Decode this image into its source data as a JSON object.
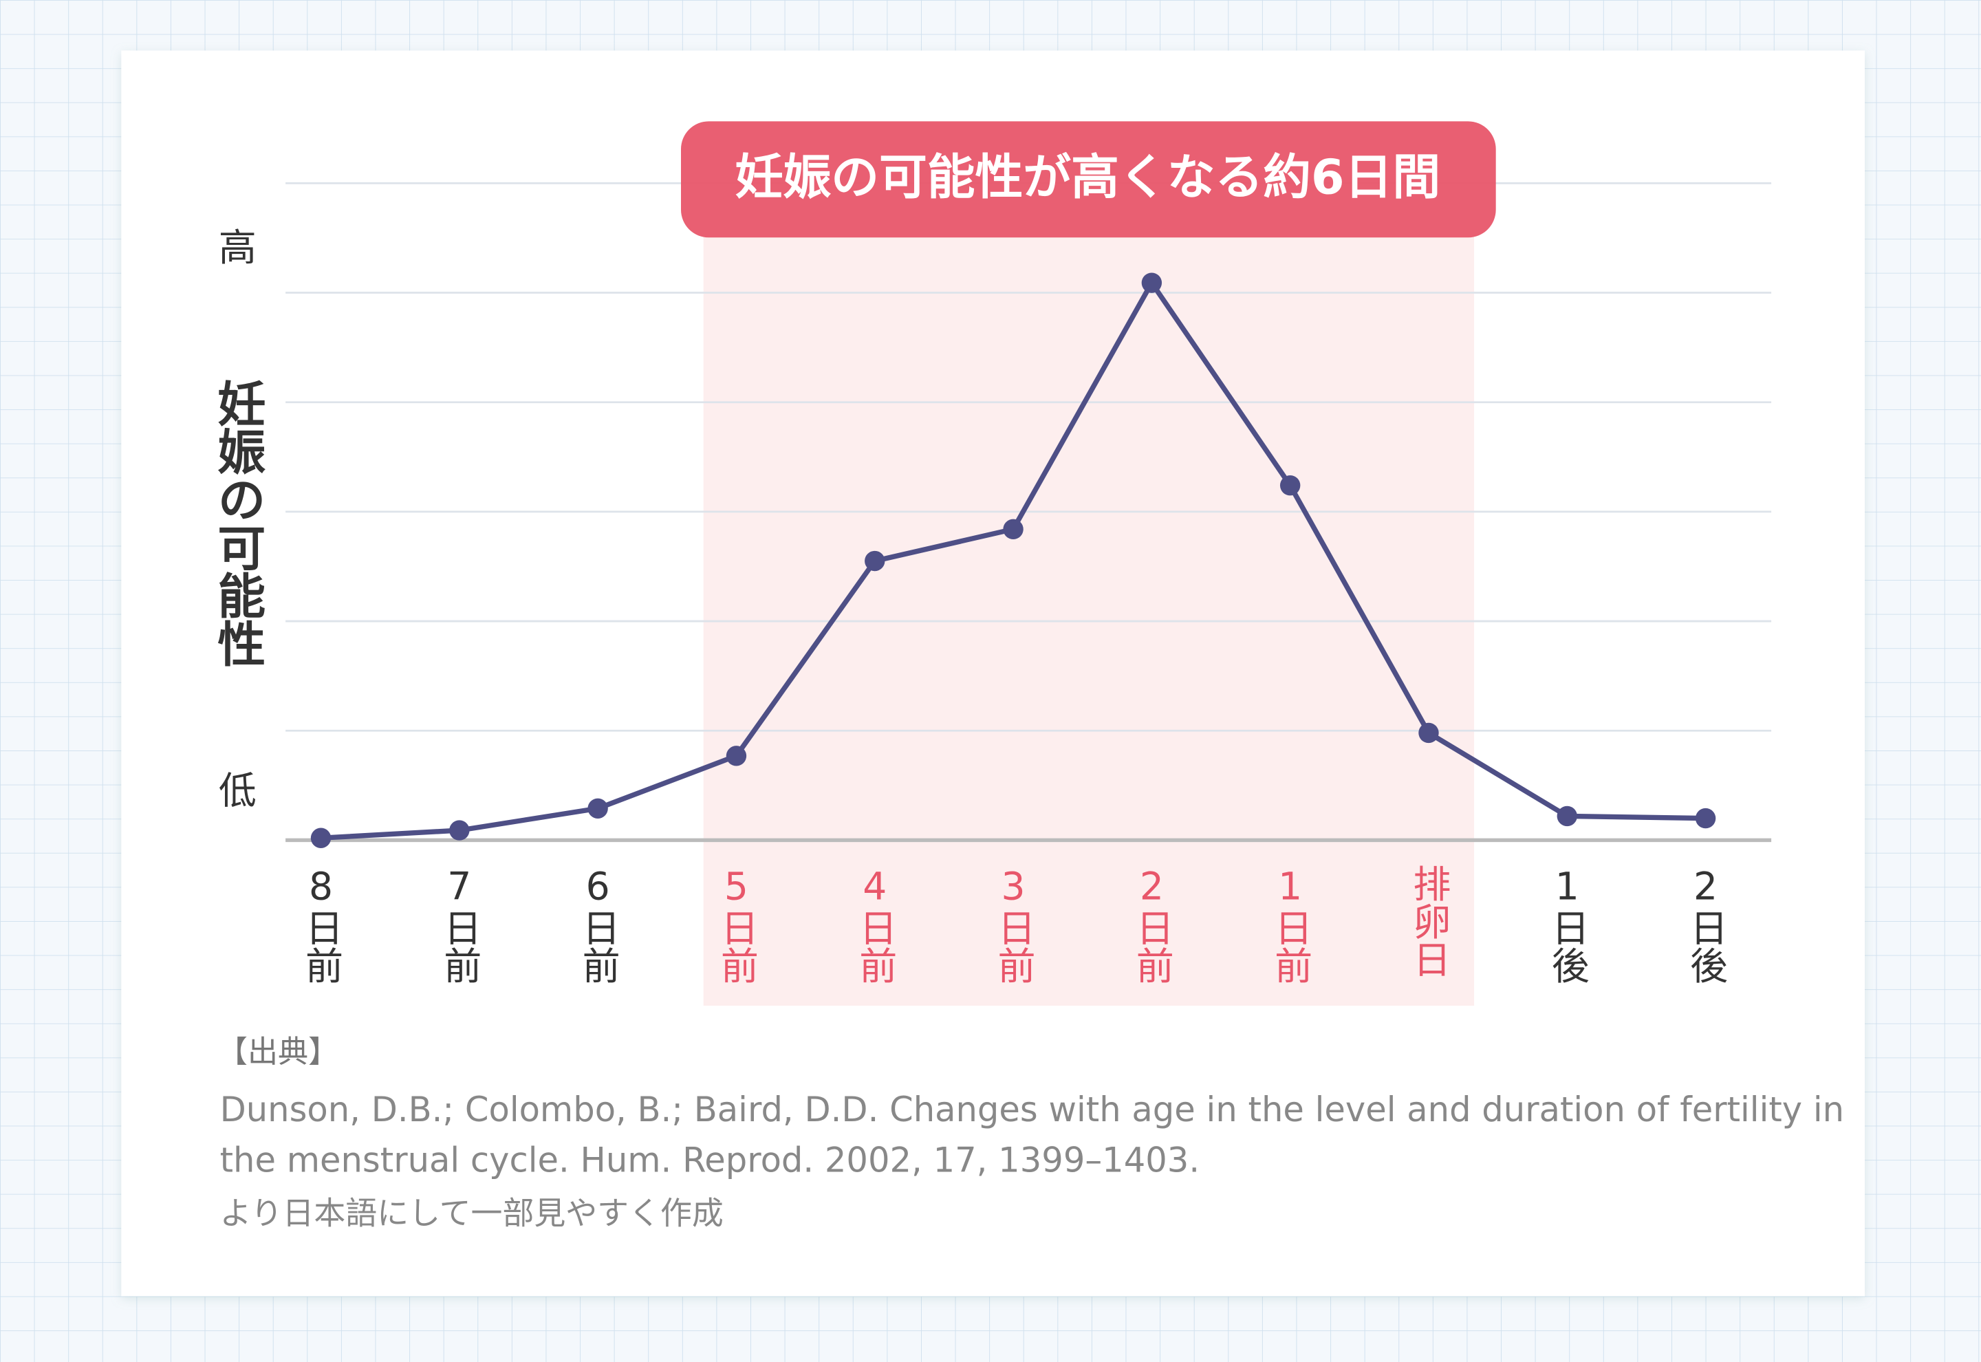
{
  "chart_data": {
    "type": "line",
    "ylabel": "妊娠の可能性",
    "y_high_label": "高",
    "y_low_label": "低",
    "categories": [
      "8日前",
      "7日前",
      "6日前",
      "5日前",
      "4日前",
      "3日前",
      "2日前",
      "1日前",
      "排卵日",
      "1日後",
      "2日後"
    ],
    "series": [
      {
        "color": "#4e4f86",
        "values": [
          0.02,
          0.09,
          0.29,
          0.77,
          2.55,
          2.84,
          5.09,
          3.24,
          0.98,
          0.22,
          0.2
        ]
      }
    ],
    "ylim": [
      0,
      6
    ],
    "yticks": [
      0,
      1,
      2,
      3,
      4,
      5,
      6
    ],
    "grid": true,
    "highlight": {
      "label": "妊娠の可能性が高くなる約6日間",
      "from": 3,
      "to": 8,
      "color": "#e8566a",
      "band_color": "#fdeeee"
    },
    "source": {
      "heading": "【出典】",
      "lines": [
        "Dunson, D.B.; Colombo, B.; Baird, D.D. Changes with age in the level and duration of fertility in",
        "the menstrual cycle. Hum. Reprod. 2002, 17, 1399–1403.",
        "より日本語にして一部見やすく作成"
      ]
    }
  }
}
